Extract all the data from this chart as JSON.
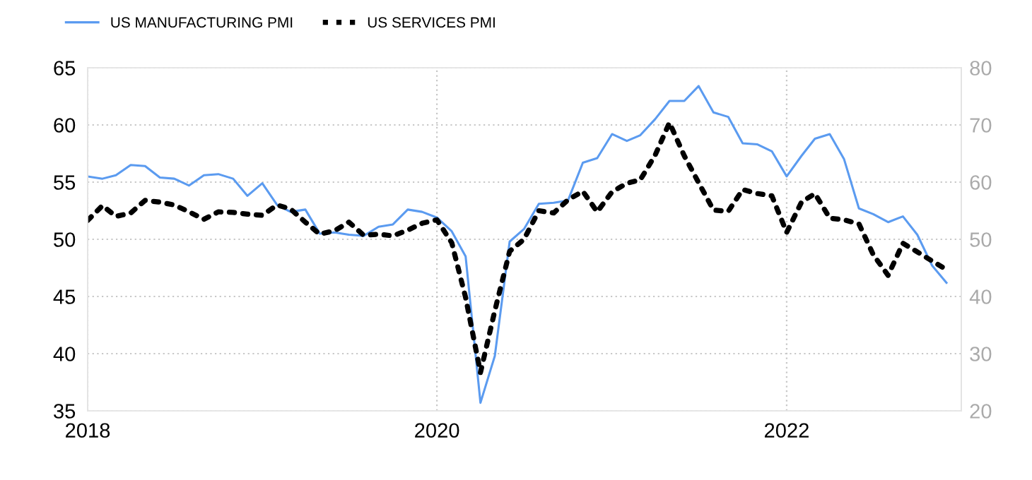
{
  "chart_data": {
    "type": "line",
    "x": [
      "2018-01",
      "2018-02",
      "2018-03",
      "2018-04",
      "2018-05",
      "2018-06",
      "2018-07",
      "2018-08",
      "2018-09",
      "2018-10",
      "2018-11",
      "2018-12",
      "2019-01",
      "2019-02",
      "2019-03",
      "2019-04",
      "2019-05",
      "2019-06",
      "2019-07",
      "2019-08",
      "2019-09",
      "2019-10",
      "2019-11",
      "2019-12",
      "2020-01",
      "2020-02",
      "2020-03",
      "2020-04",
      "2020-05",
      "2020-06",
      "2020-07",
      "2020-08",
      "2020-09",
      "2020-10",
      "2020-11",
      "2020-12",
      "2021-01",
      "2021-02",
      "2021-03",
      "2021-04",
      "2021-05",
      "2021-06",
      "2021-07",
      "2021-08",
      "2021-09",
      "2021-10",
      "2021-11",
      "2021-12",
      "2022-01",
      "2022-02",
      "2022-03",
      "2022-04",
      "2022-05",
      "2022-06",
      "2022-07",
      "2022-08",
      "2022-09",
      "2022-10",
      "2022-11",
      "2022-12"
    ],
    "series": [
      {
        "name": "US MANUFACTURING PMI",
        "color": "#5b9bf0",
        "line_style": "solid",
        "values": [
          55.5,
          55.3,
          55.6,
          56.5,
          56.4,
          55.4,
          55.3,
          54.7,
          55.6,
          55.7,
          55.3,
          53.8,
          54.9,
          53.0,
          52.4,
          52.6,
          50.5,
          50.6,
          50.4,
          50.3,
          51.1,
          51.3,
          52.6,
          52.4,
          51.9,
          50.7,
          48.5,
          35.7,
          39.8,
          49.8,
          50.9,
          53.1,
          53.2,
          53.4,
          56.7,
          57.1,
          59.2,
          58.6,
          59.1,
          60.5,
          62.1,
          62.1,
          63.4,
          61.1,
          60.7,
          58.4,
          58.3,
          57.7,
          55.5,
          57.3,
          58.8,
          59.2,
          57.0,
          52.7,
          52.2,
          51.5,
          52.0,
          50.4,
          47.7,
          46.2
        ]
      },
      {
        "name": "US SERVICES PMI",
        "color": "#000000",
        "line_style": "dotted",
        "axis": "y2",
        "values": [
          53.3,
          55.9,
          54.0,
          54.6,
          56.8,
          56.5,
          56.0,
          54.8,
          53.5,
          54.8,
          54.7,
          54.4,
          54.2,
          56.0,
          55.3,
          53.0,
          50.9,
          51.5,
          53.0,
          50.7,
          50.9,
          50.6,
          51.6,
          52.8,
          53.4,
          49.4,
          39.8,
          26.7,
          37.5,
          47.9,
          50.0,
          55.0,
          54.6,
          56.9,
          58.4,
          54.8,
          58.3,
          59.8,
          60.4,
          64.7,
          70.4,
          64.6,
          59.9,
          55.1,
          54.9,
          58.7,
          58.0,
          57.6,
          51.2,
          56.5,
          58.0,
          53.7,
          53.4,
          52.7,
          47.3,
          43.7,
          49.3,
          47.8,
          46.2,
          44.7
        ]
      }
    ],
    "xlim": [
      "2018-01",
      "2023-01"
    ],
    "xticks": [
      "2018",
      "2020",
      "2022"
    ],
    "ylim": [
      35,
      65
    ],
    "yticks": [
      35,
      40,
      45,
      50,
      55,
      60,
      65
    ],
    "y2lim": [
      20,
      80
    ],
    "y2ticks": [
      20,
      30,
      40,
      50,
      60,
      70,
      80
    ],
    "grid": true,
    "legend": "top left"
  }
}
